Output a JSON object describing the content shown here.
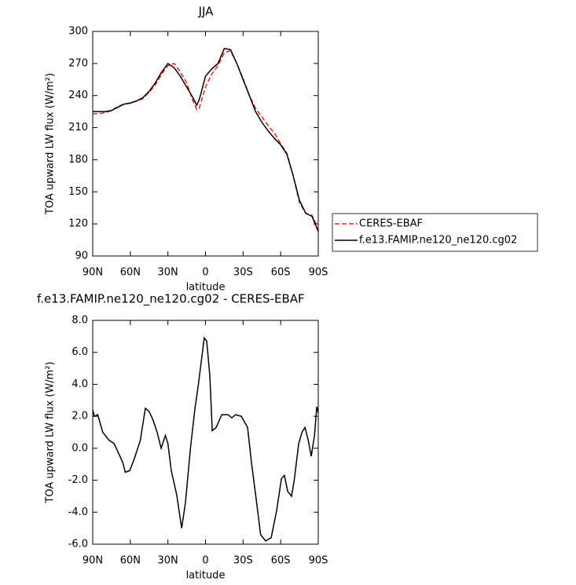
{
  "chart_data": [
    {
      "type": "line",
      "title": "JJA",
      "x_label": "latitude",
      "y_label": "TOA upward LW flux (W/m²)",
      "x": [
        90,
        85,
        80,
        75,
        70,
        65,
        60,
        55,
        50,
        45,
        40,
        35,
        30,
        25,
        20,
        15,
        10,
        7,
        5,
        0,
        -5,
        -10,
        -15,
        -20,
        -25,
        -30,
        -35,
        -40,
        -45,
        -50,
        -55,
        -60,
        -65,
        -70,
        -75,
        -80,
        -85,
        -90
      ],
      "series": [
        {
          "name": "CERES-EBAF",
          "color": "#e8201c",
          "line_style": "dashed",
          "values": [
            223,
            223,
            224,
            226,
            230,
            232,
            233,
            235,
            237,
            243,
            250,
            260,
            268,
            270,
            262,
            252,
            235,
            227,
            228,
            248,
            260,
            268,
            280,
            282,
            270,
            256,
            240,
            228,
            220,
            212,
            205,
            195,
            186,
            165,
            140,
            130,
            128,
            116
          ]
        },
        {
          "name": "f.e13.FAMIP.ne120_ne120.cg02",
          "color": "#000000",
          "line_style": "solid",
          "values": [
            225,
            225,
            225,
            226,
            229,
            232,
            233,
            235,
            238,
            244,
            252,
            262,
            270,
            266,
            258,
            248,
            238,
            231,
            236,
            258,
            265,
            270,
            284,
            283,
            270,
            255,
            240,
            225,
            215,
            207,
            200,
            194,
            185,
            165,
            142,
            130,
            127,
            113
          ]
        }
      ],
      "xlim": [
        90,
        -90
      ],
      "xticks": [
        {
          "value": 90,
          "label": "90N"
        },
        {
          "value": 60,
          "label": "60N"
        },
        {
          "value": 30,
          "label": "30N"
        },
        0,
        {
          "value": -30,
          "label": "30S"
        },
        {
          "value": -60,
          "label": "60S"
        },
        {
          "value": -90,
          "label": "90S"
        }
      ],
      "ylim": [
        90,
        300
      ],
      "yticks": [
        90,
        120,
        150,
        180,
        210,
        240,
        270,
        300
      ],
      "legend": "outside-right"
    },
    {
      "type": "line",
      "title": "f.e13.FAMIP.ne120_ne120.cg02 - CERES-EBAF",
      "x_label": "latitude",
      "y_label": "TOA upward LW flux (W/m²)",
      "x": [
        90,
        88.7,
        86,
        82,
        77,
        73,
        70,
        66,
        64,
        60.5,
        57,
        52,
        48,
        45,
        42,
        38.6,
        35.4,
        32,
        30,
        27.3,
        23,
        19,
        16,
        12,
        8.4,
        6,
        3.4,
        1,
        -1,
        -3.5,
        -5.4,
        -8.5,
        -13,
        -18,
        -21,
        -24,
        -28.6,
        -33.6,
        -36.7,
        -40,
        -44,
        -48,
        -52.4,
        -56.8,
        -60.6,
        -63,
        -65.6,
        -68.7,
        -71,
        -74.4,
        -77,
        -79.4,
        -82,
        -84.4,
        -87,
        -88.8,
        -90
      ],
      "series": [
        {
          "name": "f.e13.FAMIP.ne120_ne120.cg02 - CERES-EBAF",
          "color": "#000000",
          "line_style": "solid",
          "values": [
            2.4,
            2.0,
            2.1,
            1.0,
            0.5,
            0.3,
            -0.2,
            -0.9,
            -1.5,
            -1.4,
            -0.7,
            0.5,
            2.5,
            2.3,
            1.8,
            1.0,
            0.0,
            0.8,
            0.3,
            -1.4,
            -2.9,
            -5.0,
            -3.4,
            0.0,
            2.5,
            3.8,
            5.4,
            6.9,
            6.7,
            4.5,
            1.1,
            1.3,
            2.1,
            2.1,
            1.9,
            2.1,
            2.0,
            1.3,
            -0.9,
            -2.9,
            -5.4,
            -5.8,
            -5.6,
            -3.9,
            -1.9,
            -1.7,
            -2.7,
            -3.0,
            -1.9,
            0.3,
            1.0,
            1.3,
            0.5,
            -0.5,
            0.8,
            2.6,
            2.2
          ]
        }
      ],
      "xlim": [
        90,
        -90
      ],
      "xticks": [
        {
          "value": 90,
          "label": "90N"
        },
        {
          "value": 60,
          "label": "60N"
        },
        {
          "value": 30,
          "label": "30N"
        },
        0,
        {
          "value": -30,
          "label": "30S"
        },
        {
          "value": -60,
          "label": "60S"
        },
        {
          "value": -90,
          "label": "90S"
        }
      ],
      "ylim": [
        -6,
        8
      ],
      "yticks": [
        {
          "value": -6,
          "label": "-6.0"
        },
        {
          "value": -4,
          "label": "-4.0"
        },
        {
          "value": -2,
          "label": "-2.0"
        },
        {
          "value": 0,
          "label": "0.0"
        },
        {
          "value": 2,
          "label": "2.0"
        },
        {
          "value": 4,
          "label": "4.0"
        },
        {
          "value": 6,
          "label": "6.0"
        },
        {
          "value": 8,
          "label": "8.0"
        }
      ]
    }
  ]
}
